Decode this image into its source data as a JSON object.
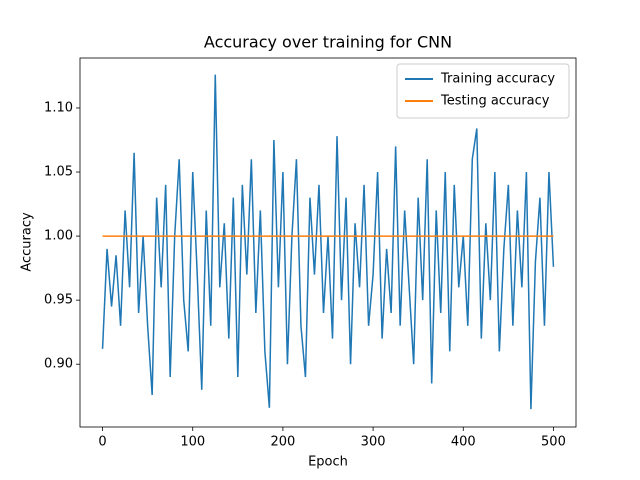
{
  "chart_data": {
    "type": "line",
    "title": "Accuracy over training for CNN",
    "x_label": "Epoch",
    "y_label": "Accuracy",
    "xlim": [
      -25,
      525
    ],
    "ylim": [
      0.851,
      1.139
    ],
    "xticks": [
      0,
      100,
      200,
      300,
      400,
      500
    ],
    "yticks": [
      {
        "value": 0.9,
        "label": "0.90"
      },
      {
        "value": 0.95,
        "label": "0.95"
      },
      {
        "value": 1.0,
        "label": "1.00"
      },
      {
        "value": 1.05,
        "label": "1.05"
      },
      {
        "value": 1.1,
        "label": "1.10"
      }
    ],
    "legend": "upper right",
    "series": [
      {
        "name": "Training accuracy",
        "color": "#1f77b4",
        "x": [
          0,
          5,
          10,
          15,
          20,
          25,
          30,
          35,
          40,
          45,
          50,
          55,
          60,
          65,
          70,
          75,
          80,
          85,
          90,
          95,
          100,
          105,
          110,
          115,
          120,
          125,
          130,
          135,
          140,
          145,
          150,
          155,
          160,
          165,
          170,
          175,
          180,
          185,
          190,
          195,
          200,
          205,
          210,
          215,
          220,
          225,
          230,
          235,
          240,
          245,
          250,
          255,
          260,
          265,
          270,
          275,
          280,
          285,
          290,
          295,
          300,
          305,
          310,
          315,
          320,
          325,
          330,
          335,
          340,
          345,
          350,
          355,
          360,
          365,
          370,
          375,
          380,
          385,
          390,
          395,
          400,
          405,
          410,
          415,
          420,
          425,
          430,
          435,
          440,
          445,
          450,
          455,
          460,
          465,
          470,
          475,
          480,
          485,
          490,
          495,
          500
        ],
        "values": [
          0.912,
          0.99,
          0.945,
          0.985,
          0.93,
          1.02,
          0.96,
          1.065,
          0.94,
          1.0,
          0.93,
          0.876,
          1.03,
          0.96,
          1.04,
          0.89,
          1.0,
          1.06,
          0.95,
          0.91,
          1.05,
          0.97,
          0.88,
          1.02,
          0.93,
          1.126,
          0.96,
          1.01,
          0.92,
          1.03,
          0.89,
          1.04,
          0.97,
          1.06,
          0.94,
          1.02,
          0.91,
          0.866,
          1.075,
          0.96,
          1.05,
          0.9,
          1.0,
          1.06,
          0.93,
          0.89,
          1.03,
          0.97,
          1.04,
          0.94,
          1.0,
          0.92,
          1.078,
          0.95,
          1.03,
          0.9,
          1.01,
          0.96,
          1.04,
          0.93,
          0.97,
          1.05,
          0.92,
          0.99,
          0.94,
          1.07,
          0.93,
          1.02,
          0.96,
          0.9,
          1.03,
          0.95,
          1.06,
          0.885,
          1.02,
          0.94,
          1.05,
          0.91,
          1.04,
          0.96,
          1.0,
          0.93,
          1.06,
          1.084,
          0.92,
          1.01,
          0.95,
          1.05,
          0.91,
          0.99,
          1.04,
          0.93,
          1.02,
          0.96,
          1.05,
          0.865,
          0.98,
          1.03,
          0.93,
          1.05,
          0.976
        ]
      },
      {
        "name": "Testing accuracy",
        "color": "#ff7f0e",
        "x": [
          0,
          500
        ],
        "values": [
          1.0,
          1.0
        ]
      }
    ]
  }
}
